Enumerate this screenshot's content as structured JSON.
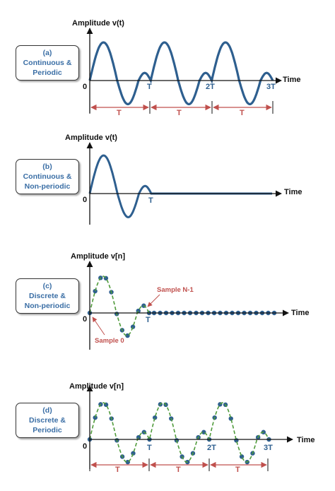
{
  "colors": {
    "signal": "#2e5f8f",
    "axis": "#111111",
    "period": "#c0504d",
    "interp": "#4f9a3a",
    "note": "#c0504d",
    "box_text": "#3a6ea5"
  },
  "panels": [
    {
      "id": "a",
      "kind": "continuous-periodic",
      "box": [
        "(a)",
        "Continuous &",
        "Periodic"
      ],
      "y_label": "Amplitude v(t)",
      "x_label": "Time",
      "origin": "0",
      "ticks": [
        "T",
        "2T",
        "3T"
      ],
      "period_label": "T",
      "periods": 3
    },
    {
      "id": "b",
      "kind": "continuous-nonperiodic",
      "box": [
        "(b)",
        "Continuous &",
        "Non-periodic"
      ],
      "y_label": "Amplitude v(t)",
      "x_label": "Time",
      "origin": "0",
      "ticks": [
        "T"
      ]
    },
    {
      "id": "c",
      "kind": "discrete-nonperiodic",
      "box": [
        "(c)",
        "Discrete &",
        "Non-periodic"
      ],
      "y_label": "Amplitude v[n]",
      "x_label": "Time",
      "origin": "0",
      "ticks": [
        "T"
      ],
      "annotations": {
        "first": "Sample 0",
        "last": "Sample N-1"
      }
    },
    {
      "id": "d",
      "kind": "discrete-periodic",
      "box": [
        "(d)",
        "Discrete &",
        "Periodic"
      ],
      "y_label": "Amplitude v[n]",
      "x_label": "Time",
      "origin": "0",
      "ticks": [
        "T",
        "2T",
        "3T"
      ],
      "period_label": "T",
      "periods": 3
    }
  ]
}
